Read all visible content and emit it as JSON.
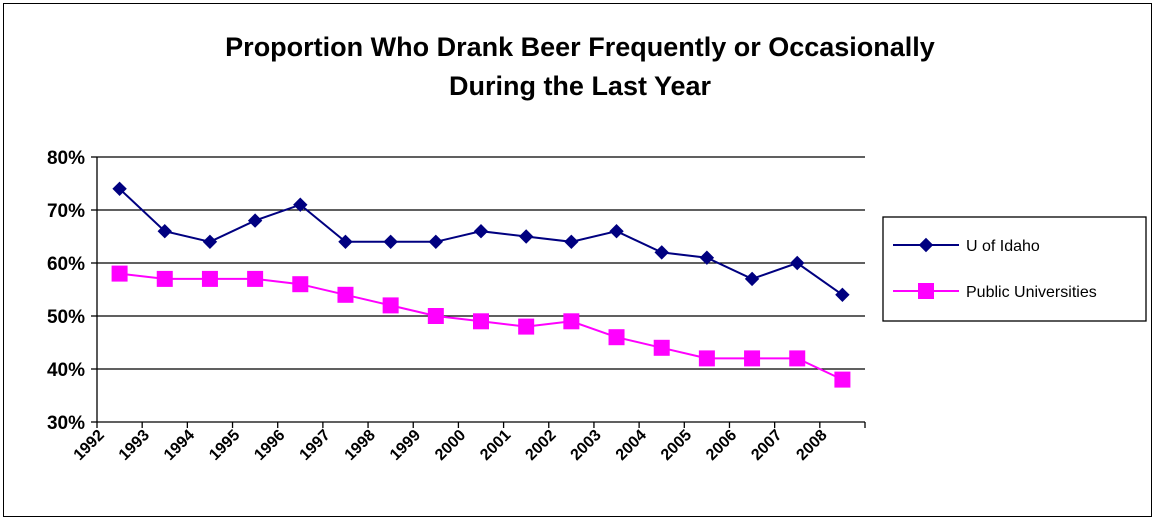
{
  "chart_data": {
    "type": "line",
    "title": [
      "Proportion Who Drank Beer Frequently or Occasionally",
      "During the Last Year"
    ],
    "xlabel": "",
    "ylabel": "",
    "categories": [
      "1992",
      "1993",
      "1994",
      "1995",
      "1996",
      "1997",
      "1998",
      "1999",
      "2000",
      "2001",
      "2002",
      "2003",
      "2004",
      "2005",
      "2006",
      "2007",
      "2008"
    ],
    "ylim": [
      30,
      80
    ],
    "yticks": [
      30,
      40,
      50,
      60,
      70,
      80
    ],
    "ytick_labels": [
      "30%",
      "40%",
      "50%",
      "60%",
      "70%",
      "80%"
    ],
    "grid": true,
    "legend_position": "right",
    "series": [
      {
        "name": "U of Idaho",
        "color": "#000080",
        "marker": "diamond",
        "values": [
          74,
          66,
          64,
          68,
          71,
          64,
          64,
          64,
          66,
          65,
          64,
          66,
          62,
          61,
          57,
          60,
          54
        ]
      },
      {
        "name": "Public Universities",
        "color": "#FF00FF",
        "marker": "square",
        "values": [
          58,
          57,
          57,
          57,
          56,
          54,
          52,
          50,
          49,
          48,
          49,
          46,
          44,
          42,
          42,
          42,
          38
        ]
      }
    ]
  }
}
